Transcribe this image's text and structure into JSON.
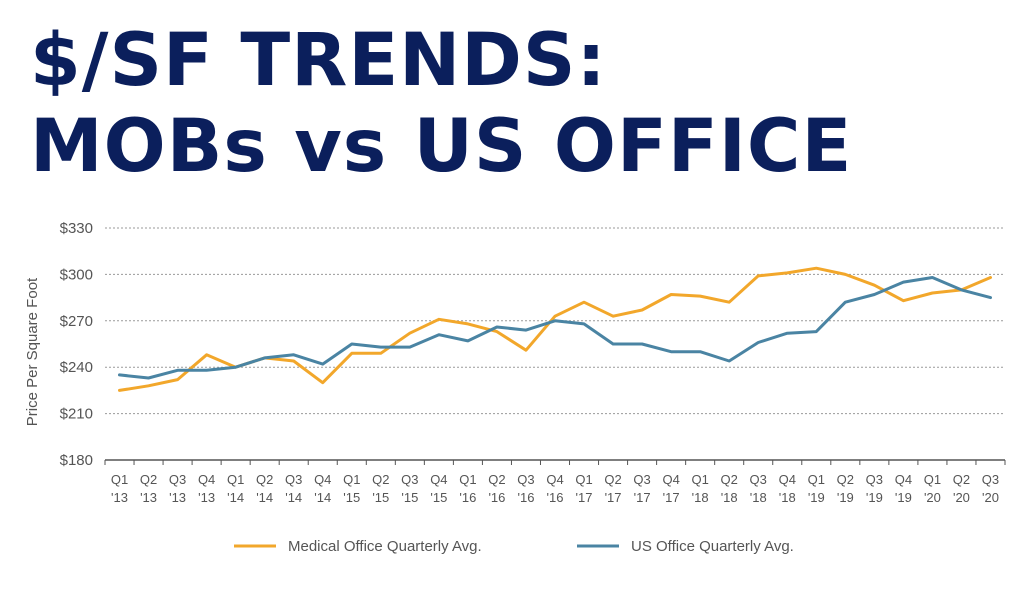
{
  "title": {
    "line1": "$/SF TRENDS:",
    "line2": "MOBs vs US OFFICE"
  },
  "chart_data": {
    "type": "line",
    "ylabel": "Price Per Square Foot",
    "ylim": [
      180,
      330
    ],
    "yticks": [
      {
        "value": 180,
        "label": "$180"
      },
      {
        "value": 210,
        "label": "$210"
      },
      {
        "value": 240,
        "label": "$240"
      },
      {
        "value": 270,
        "label": "$270"
      },
      {
        "value": 300,
        "label": "$300"
      },
      {
        "value": 330,
        "label": "$330"
      }
    ],
    "grid": true,
    "legend": "bottom",
    "categories": [
      [
        "Q1",
        "'13"
      ],
      [
        "Q2",
        "'13"
      ],
      [
        "Q3",
        "'13"
      ],
      [
        "Q4",
        "'13"
      ],
      [
        "Q1",
        "'14"
      ],
      [
        "Q2",
        "'14"
      ],
      [
        "Q3",
        "'14"
      ],
      [
        "Q4",
        "'14"
      ],
      [
        "Q1",
        "'15"
      ],
      [
        "Q2",
        "'15"
      ],
      [
        "Q3",
        "'15"
      ],
      [
        "Q4",
        "'15"
      ],
      [
        "Q1",
        "'16"
      ],
      [
        "Q2",
        "'16"
      ],
      [
        "Q3",
        "'16"
      ],
      [
        "Q4",
        "'16"
      ],
      [
        "Q1",
        "'17"
      ],
      [
        "Q2",
        "'17"
      ],
      [
        "Q3",
        "'17"
      ],
      [
        "Q4",
        "'17"
      ],
      [
        "Q1",
        "'18"
      ],
      [
        "Q2",
        "'18"
      ],
      [
        "Q3",
        "'18"
      ],
      [
        "Q4",
        "'18"
      ],
      [
        "Q1",
        "'19"
      ],
      [
        "Q2",
        "'19"
      ],
      [
        "Q3",
        "'19"
      ],
      [
        "Q4",
        "'19"
      ],
      [
        "Q1",
        "'20"
      ],
      [
        "Q2",
        "'20"
      ],
      [
        "Q3",
        "'20"
      ]
    ],
    "series": [
      {
        "name": "Medical Office Quarterly Avg.",
        "color": "#f2a72b",
        "values": [
          225,
          228,
          232,
          248,
          240,
          246,
          244,
          230,
          249,
          249,
          262,
          271,
          268,
          263,
          251,
          273,
          282,
          273,
          277,
          287,
          286,
          282,
          299,
          301,
          304,
          300,
          293,
          283,
          288,
          290,
          298
        ]
      },
      {
        "name": "US Office Quarterly Avg.",
        "color": "#4a84a3",
        "values": [
          235,
          233,
          238,
          238,
          240,
          246,
          248,
          242,
          255,
          253,
          253,
          261,
          257,
          266,
          264,
          270,
          268,
          255,
          255,
          250,
          250,
          244,
          256,
          262,
          263,
          282,
          287,
          295,
          298,
          290,
          285
        ]
      }
    ]
  }
}
